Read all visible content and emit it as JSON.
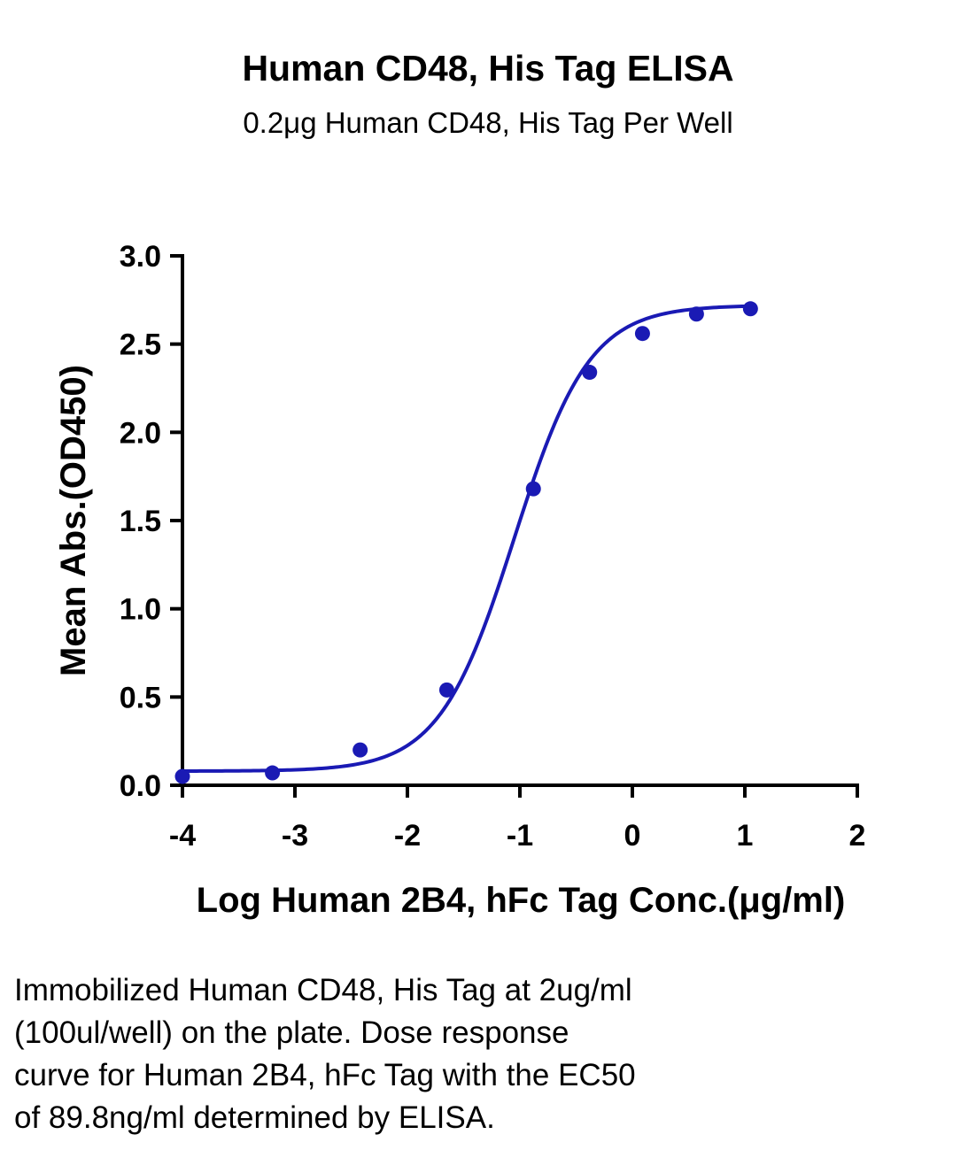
{
  "chart_data": {
    "type": "scatter",
    "title": "Human CD48, His Tag ELISA",
    "subtitle": "0.2μg Human CD48, His Tag Per Well",
    "xlabel": "Log Human 2B4, hFc Tag Conc.(μg/ml)",
    "ylabel": "Mean Abs.(OD450)",
    "xlim": [
      -4,
      2
    ],
    "ylim": [
      0,
      3.0
    ],
    "x_ticks": [
      "-4",
      "-3",
      "-2",
      "-1",
      "0",
      "1",
      "2"
    ],
    "y_ticks": [
      "0.0",
      "0.5",
      "1.0",
      "1.5",
      "2.0",
      "2.5",
      "3.0"
    ],
    "grid": false,
    "color": "#1a1ab4",
    "series": [
      {
        "points": [
          {
            "x": -4.0,
            "y": 0.05
          },
          {
            "x": -3.2,
            "y": 0.07
          },
          {
            "x": -2.42,
            "y": 0.2
          },
          {
            "x": -1.65,
            "y": 0.54
          },
          {
            "x": -0.88,
            "y": 1.68
          },
          {
            "x": -0.38,
            "y": 2.34
          },
          {
            "x": 0.09,
            "y": 2.56
          },
          {
            "x": 0.57,
            "y": 2.67
          },
          {
            "x": 1.05,
            "y": 2.7
          }
        ],
        "fit": {
          "type": "4PL",
          "bottom": 0.08,
          "top": 2.72,
          "logEC50": -1.05,
          "hill": 1.3
        }
      }
    ]
  },
  "caption": [
    "Immobilized Human CD48, His Tag at 2ug/ml",
    "(100ul/well) on the plate. Dose response",
    "curve for Human 2B4, hFc Tag with the EC50",
    "of 89.8ng/ml determined by ELISA."
  ]
}
